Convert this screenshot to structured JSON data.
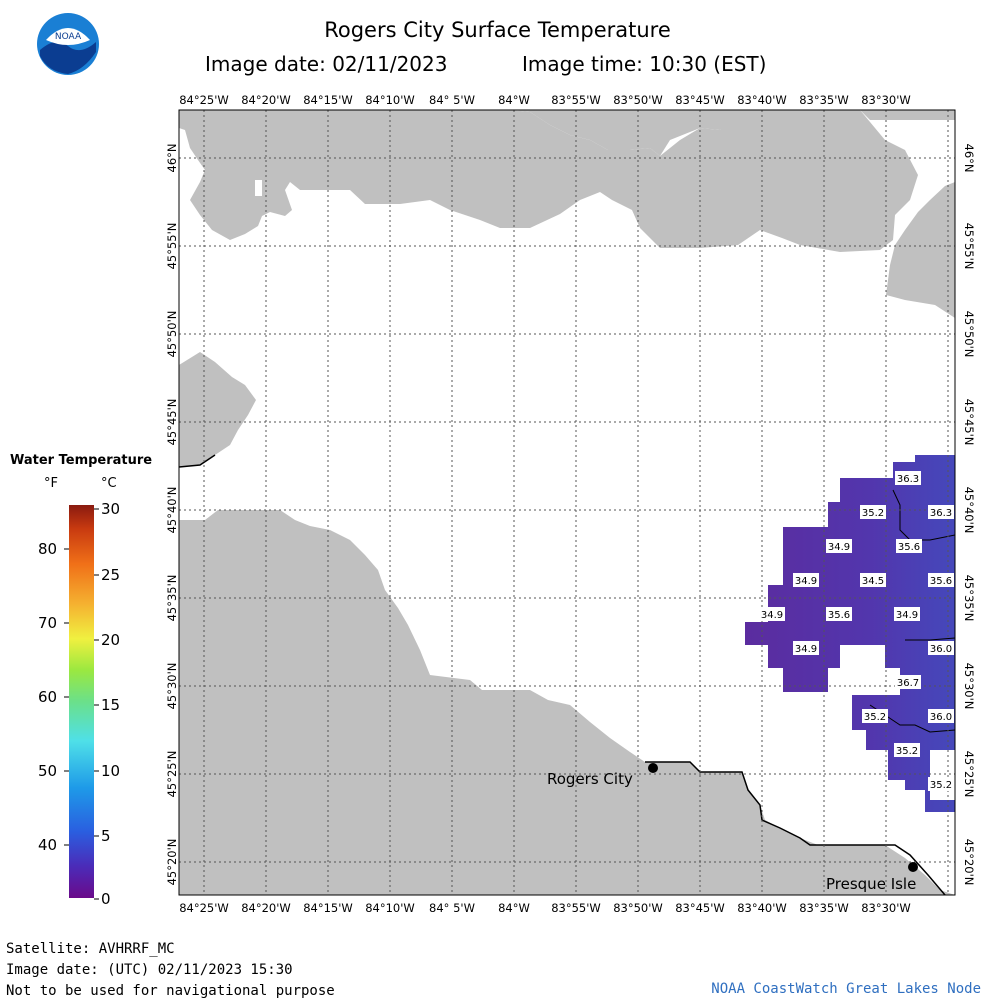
{
  "header": {
    "title": "Rogers City Surface Temperature",
    "image_date": "Image date: 02/11/2023",
    "image_time": "Image time: 10:30 (EST)"
  },
  "logo": {
    "text": "NOAA",
    "icon": "noaa-logo-icon"
  },
  "map": {
    "lon_labels": [
      "84°25'W",
      "84°20'W",
      "84°15'W",
      "84°10'W",
      "84° 5'W",
      "84°W",
      "83°55'W",
      "83°50'W",
      "83°45'W",
      "83°40'W",
      "83°35'W",
      "83°30'W"
    ],
    "lat_labels": [
      "46°N",
      "45°55'N",
      "45°50'N",
      "45°45'N",
      "45°40'N",
      "45°35'N",
      "45°30'N",
      "45°25'N",
      "45°20'N"
    ],
    "places": [
      {
        "name": "Rogers City"
      },
      {
        "name": "Presque Isle"
      }
    ],
    "temperature_labels": [
      "36.3",
      "35.2",
      "36.3",
      "34.9",
      "35.6",
      "34.9",
      "34.5",
      "35.6",
      "34.9",
      "35.6",
      "34.9",
      "34.9",
      "36.0",
      "36.7",
      "35.2",
      "36.0",
      "35.2",
      "35.2"
    ],
    "colors": {
      "land": "#c0c0c0",
      "water": "#ffffff",
      "grid": "#000000",
      "sst_dark": "#5a2fa2",
      "sst_mid": "#4a46b8"
    }
  },
  "legend": {
    "title": "Water Temperature",
    "unit_f": "°F",
    "unit_c": "°C",
    "f_ticks": [
      "80",
      "70",
      "60",
      "50",
      "40"
    ],
    "c_ticks": [
      "30",
      "25",
      "20",
      "15",
      "10",
      "5",
      "0"
    ]
  },
  "footer": {
    "satellite": "Satellite: AVHRRF_MC",
    "utc_date": "Image date: (UTC) 02/11/2023  15:30",
    "disclaimer": "Not to be used for navigational purpose",
    "credit": "NOAA CoastWatch Great Lakes Node"
  }
}
